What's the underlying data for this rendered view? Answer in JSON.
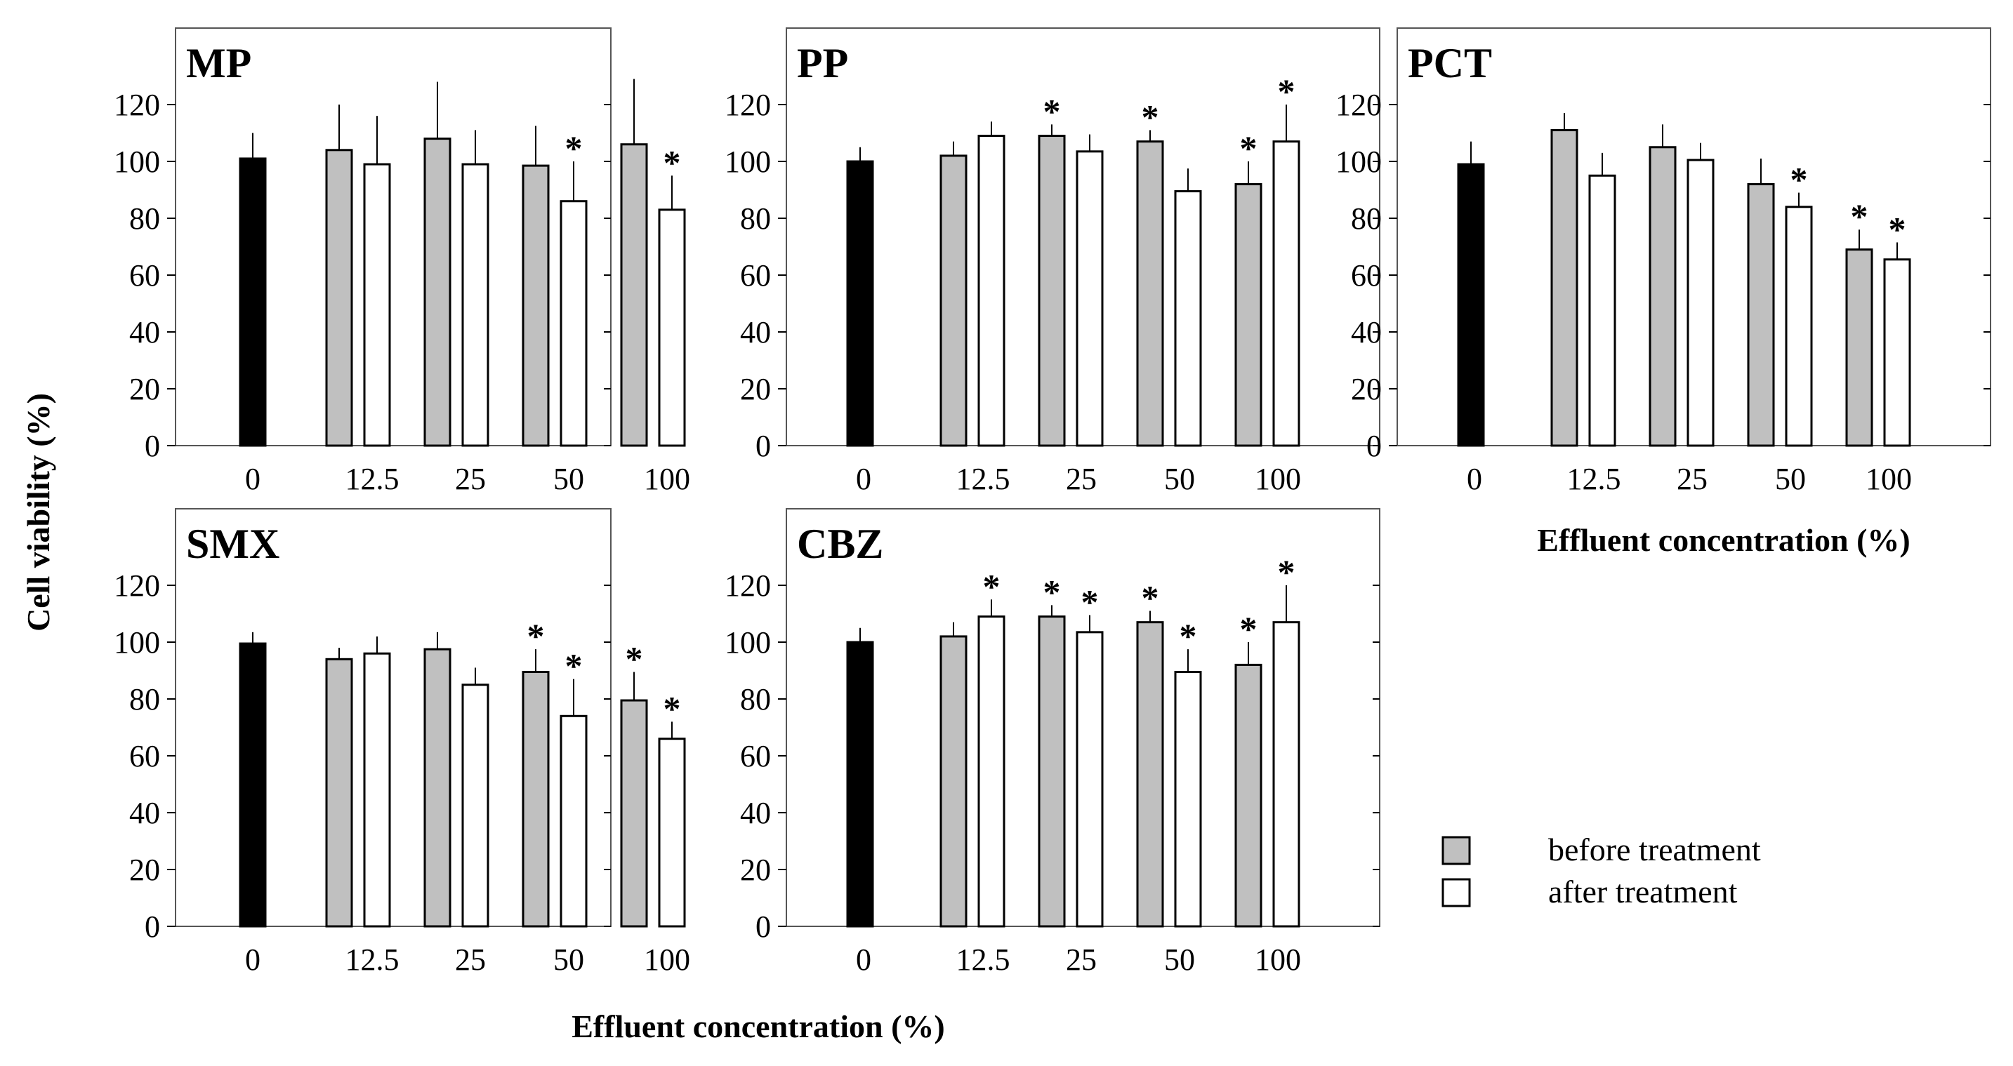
{
  "figure": {
    "ylabel": "Cell viability (%)",
    "xlabel": "Effluent concentration (%)",
    "legend": {
      "position": "bottom-right",
      "items": [
        {
          "label": "before treatment",
          "color": "#c0c0c0"
        },
        {
          "label": "after treatment",
          "color": "#ffffff"
        }
      ]
    }
  },
  "colors": {
    "control": "#000000",
    "before": "#c0c0c0",
    "after": "#ffffff",
    "stroke": "#000000"
  },
  "chart_data": [
    {
      "type": "bar",
      "title": "MP",
      "categories": [
        "0",
        "12.5",
        "25",
        "50",
        "100"
      ],
      "ylim": [
        0,
        140
      ],
      "yticks": [
        0,
        20,
        40,
        60,
        80,
        100,
        120
      ],
      "control": {
        "value": 101,
        "error": 9
      },
      "series": [
        {
          "name": "before treatment",
          "values": [
            null,
            104,
            108,
            98.5,
            106
          ],
          "errors": [
            null,
            16,
            20,
            14,
            23
          ],
          "significant": [
            false,
            false,
            false,
            false,
            false
          ]
        },
        {
          "name": "after treatment",
          "values": [
            null,
            99,
            99,
            86,
            83
          ],
          "errors": [
            null,
            17,
            12,
            14,
            12
          ],
          "significant": [
            false,
            false,
            false,
            true,
            true
          ]
        }
      ]
    },
    {
      "type": "bar",
      "title": "PP",
      "categories": [
        "0",
        "12.5",
        "25",
        "50",
        "100"
      ],
      "ylim": [
        0,
        140
      ],
      "yticks": [
        0,
        20,
        40,
        60,
        80,
        100,
        120
      ],
      "control": {
        "value": 100,
        "error": 5
      },
      "series": [
        {
          "name": "before treatment",
          "values": [
            null,
            102,
            109,
            107,
            92
          ],
          "errors": [
            null,
            5,
            4,
            4,
            8
          ],
          "significant": [
            false,
            false,
            true,
            true,
            true
          ]
        },
        {
          "name": "after treatment",
          "values": [
            null,
            109,
            103.5,
            89.5,
            107
          ],
          "errors": [
            null,
            5,
            6,
            8,
            13
          ],
          "significant": [
            false,
            false,
            false,
            false,
            true
          ]
        }
      ]
    },
    {
      "type": "bar",
      "title": "PCT",
      "categories": [
        "0",
        "12.5",
        "25",
        "50",
        "100"
      ],
      "ylim": [
        0,
        140
      ],
      "yticks": [
        0,
        20,
        40,
        60,
        80,
        100,
        120
      ],
      "control": {
        "value": 99,
        "error": 8
      },
      "series": [
        {
          "name": "before treatment",
          "values": [
            null,
            111,
            105,
            92,
            69
          ],
          "errors": [
            null,
            6,
            8,
            9,
            7
          ],
          "significant": [
            false,
            false,
            false,
            false,
            true
          ]
        },
        {
          "name": "after treatment",
          "values": [
            null,
            95,
            100.5,
            84,
            65.5
          ],
          "errors": [
            null,
            8,
            6,
            5,
            6
          ],
          "significant": [
            false,
            false,
            false,
            true,
            true
          ]
        }
      ]
    },
    {
      "type": "bar",
      "title": "SMX",
      "categories": [
        "0",
        "12.5",
        "25",
        "50",
        "100"
      ],
      "ylim": [
        0,
        140
      ],
      "yticks": [
        0,
        20,
        40,
        60,
        80,
        100,
        120
      ],
      "control": {
        "value": 99.5,
        "error": 4
      },
      "series": [
        {
          "name": "before treatment",
          "values": [
            null,
            94,
            97.5,
            89.5,
            79.5
          ],
          "errors": [
            null,
            4,
            6,
            8,
            10
          ],
          "significant": [
            false,
            false,
            false,
            true,
            true
          ]
        },
        {
          "name": "after treatment",
          "values": [
            null,
            96,
            85,
            74,
            66
          ],
          "errors": [
            null,
            6,
            6,
            13,
            6
          ],
          "significant": [
            false,
            false,
            false,
            true,
            true
          ]
        }
      ]
    },
    {
      "type": "bar",
      "title": "CBZ",
      "categories": [
        "0",
        "12.5",
        "25",
        "50",
        "100"
      ],
      "ylim": [
        0,
        140
      ],
      "yticks": [
        0,
        20,
        40,
        60,
        80,
        100,
        120
      ],
      "control": {
        "value": 100,
        "error": 5
      },
      "series": [
        {
          "name": "before treatment",
          "values": [
            null,
            102,
            109,
            107,
            92
          ],
          "errors": [
            null,
            5,
            4,
            4,
            8
          ],
          "significant": [
            false,
            false,
            true,
            true,
            true
          ]
        },
        {
          "name": "after treatment",
          "values": [
            null,
            109,
            103.5,
            89.5,
            107
          ],
          "errors": [
            null,
            6,
            6,
            8,
            13
          ],
          "significant": [
            false,
            true,
            true,
            true,
            true
          ]
        }
      ]
    }
  ]
}
